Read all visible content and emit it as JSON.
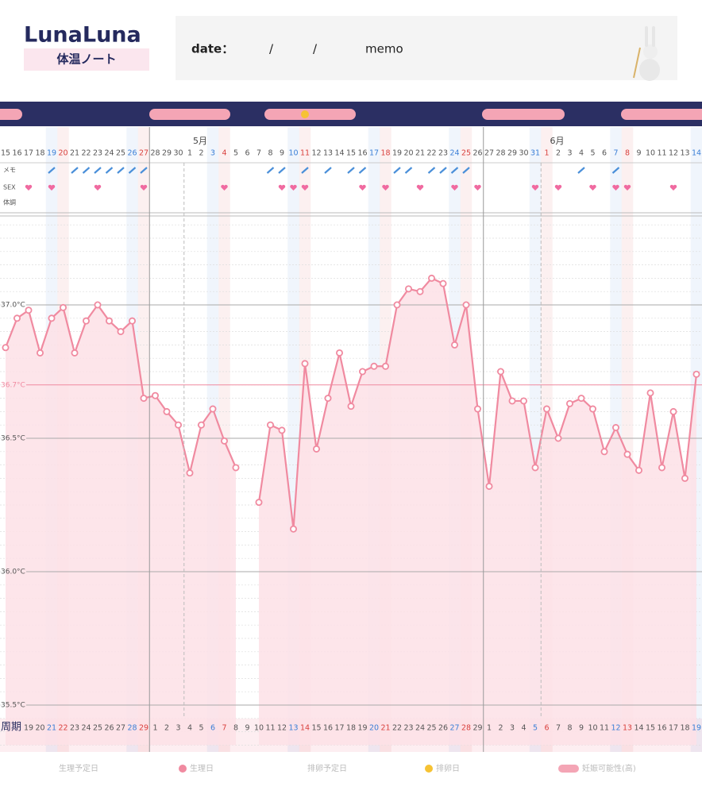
{
  "header": {
    "logo": "LunaLuna",
    "subtitle": "体温ノート",
    "date_label": "date：",
    "slash_1": "/",
    "slash_2": "/",
    "memo_label": "memo"
  },
  "chart_data": {
    "type": "line",
    "categories": [
      "15",
      "16",
      "17",
      "18",
      "19",
      "20",
      "21",
      "22",
      "23",
      "24",
      "25",
      "26",
      "27",
      "28",
      "29",
      "30",
      "1",
      "2",
      "3",
      "4",
      "5",
      "6",
      "7",
      "8",
      "9",
      "10",
      "11",
      "12",
      "13",
      "14",
      "15",
      "16",
      "17",
      "18",
      "19",
      "20",
      "21",
      "22",
      "23",
      "24",
      "25",
      "26",
      "27",
      "28",
      "29",
      "30",
      "31",
      "1",
      "2",
      "3",
      "4",
      "5",
      "6",
      "7",
      "8",
      "9",
      "10",
      "11",
      "12",
      "13",
      "14"
    ],
    "day_colors": [
      "#555",
      "#555",
      "#555",
      "#555",
      "#3b7fd6",
      "#d9413e",
      "#555",
      "#555",
      "#555",
      "#555",
      "#555",
      "#3b7fd6",
      "#d9413e",
      "#555",
      "#555",
      "#555",
      "#555",
      "#555",
      "#3b7fd6",
      "#d9413e",
      "#555",
      "#555",
      "#555",
      "#555",
      "#555",
      "#3b7fd6",
      "#d9413e",
      "#555",
      "#555",
      "#555",
      "#555",
      "#555",
      "#3b7fd6",
      "#d9413e",
      "#555",
      "#555",
      "#555",
      "#555",
      "#555",
      "#3b7fd6",
      "#d9413e",
      "#555",
      "#555",
      "#555",
      "#555",
      "#555",
      "#3b7fd6",
      "#d9413e",
      "#555",
      "#555",
      "#555",
      "#555",
      "#555",
      "#3b7fd6",
      "#d9413e",
      "#555",
      "#555",
      "#555",
      "#555",
      "#555",
      "#3b7fd6"
    ],
    "month_labels": [
      "5月",
      "6月"
    ],
    "cycle_label": "周期",
    "cycle_days": [
      null,
      null,
      "19",
      "20",
      "21",
      "22",
      "23",
      "24",
      "25",
      "26",
      "27",
      "28",
      "29",
      "1",
      "2",
      "3",
      "4",
      "5",
      "6",
      "7",
      "8",
      "9",
      "10",
      "11",
      "12",
      "13",
      "14",
      "15",
      "16",
      "17",
      "18",
      "19",
      "20",
      "21",
      "22",
      "23",
      "24",
      "25",
      "26",
      "27",
      "28",
      "29",
      "1",
      "2",
      "3",
      "4",
      "5",
      "6",
      "7",
      "8",
      "9",
      "10",
      "11",
      "12",
      "13",
      "14",
      "15",
      "16",
      "17",
      "18",
      "19"
    ],
    "row_labels": [
      "メモ",
      "SEX",
      "体調"
    ],
    "memo_days": [
      4,
      6,
      7,
      8,
      9,
      10,
      11,
      12,
      23,
      24,
      26,
      28,
      30,
      31,
      34,
      35,
      37,
      38,
      39,
      40,
      50,
      53
    ],
    "sex_days": [
      2,
      4,
      8,
      12,
      19,
      24,
      25,
      26,
      31,
      33,
      36,
      39,
      41,
      46,
      48,
      51,
      53,
      54,
      58
    ],
    "series": [
      {
        "name": "体温",
        "color": "#f08aa0",
        "values": [
          36.84,
          36.95,
          36.98,
          36.82,
          36.95,
          36.99,
          36.82,
          36.94,
          37.0,
          36.94,
          36.9,
          36.94,
          36.65,
          36.66,
          36.6,
          36.55,
          36.37,
          36.55,
          36.61,
          36.49,
          36.39,
          null,
          36.26,
          36.55,
          36.53,
          36.16,
          36.78,
          36.46,
          36.65,
          36.82,
          36.62,
          36.75,
          36.77,
          36.77,
          37.0,
          37.06,
          37.05,
          37.1,
          37.08,
          36.85,
          37.0,
          36.61,
          36.32,
          36.75,
          36.64,
          36.64,
          36.39,
          36.61,
          36.5,
          36.63,
          36.65,
          36.61,
          36.45,
          36.54,
          36.44,
          36.38,
          36.67,
          36.39,
          36.6,
          36.35,
          36.74
        ]
      }
    ],
    "ylim": [
      35.35,
      37.3
    ],
    "yticks": [
      {
        "value": 37.0,
        "label": "37.0°C"
      },
      {
        "value": 36.7,
        "label": "36.7°C",
        "color": "#f08aa0"
      },
      {
        "value": 36.5,
        "label": "36.5°C"
      },
      {
        "value": 36.0,
        "label": "36.0°C"
      },
      {
        "value": 35.5,
        "label": "35.5°C"
      }
    ],
    "legend": [
      "生理予定日",
      "生理日",
      "排卵予定日",
      "排卵日",
      "妊娠可能性(高)"
    ]
  }
}
